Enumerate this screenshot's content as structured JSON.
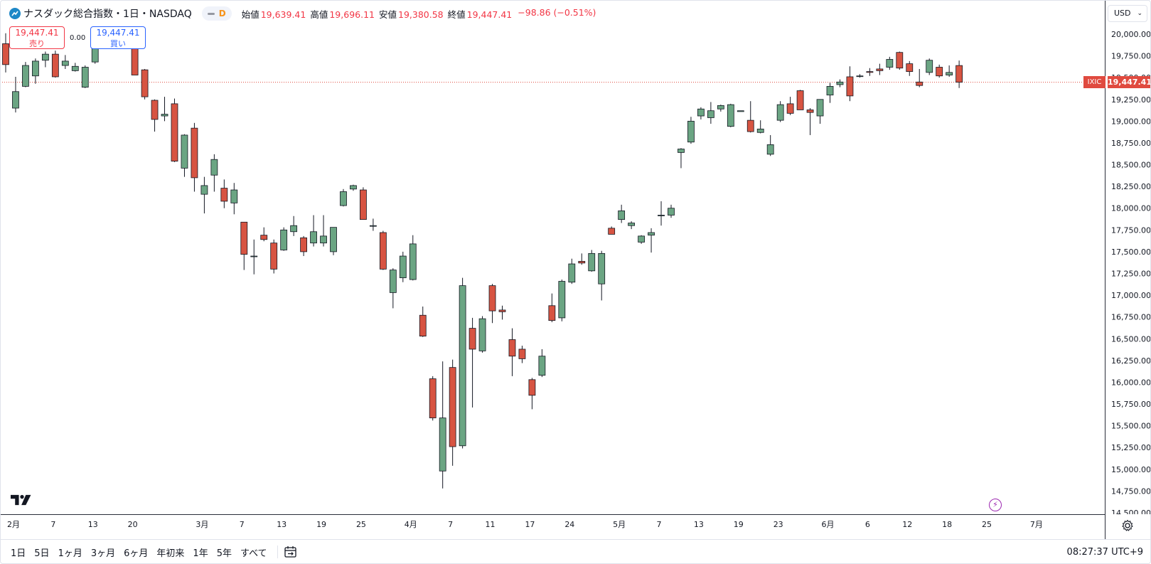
{
  "header": {
    "symbol_title": "ナスダック総合指数・1日・NASDAQ",
    "interval_badge": "D",
    "ohlc": [
      {
        "label": "始値",
        "value": "19,639.41"
      },
      {
        "label": "高値",
        "value": "19,696.11"
      },
      {
        "label": "安値",
        "value": "19,380.58"
      },
      {
        "label": "終値",
        "value": "19,447.41"
      },
      {
        "label": "",
        "value": "−98.86 (−0.51%)"
      }
    ]
  },
  "trade": {
    "sell_price": "19,447.41",
    "sell_label": "売り",
    "spread": "0.00",
    "buy_price": "19,447.41",
    "buy_label": "買い"
  },
  "currency_button": "USD",
  "last_price_tag": "19,447.41",
  "symbol_tag": "IXIC",
  "toolbar": {
    "ranges": [
      "1日",
      "5日",
      "1ヶ月",
      "3ヶ月",
      "6ヶ月",
      "年初来",
      "1年",
      "5年",
      "すべて"
    ]
  },
  "clock": "08:27:37 UTC+9",
  "colors": {
    "up": "#6ba583",
    "down": "#d75442",
    "tag": "#e04a3f",
    "accent": "#2962ff"
  },
  "icons": [
    "symbol-logo-icon",
    "tradingview-logo-icon",
    "flash-icon",
    "settings-gear-icon",
    "calendar-range-icon",
    "chevron-down-icon"
  ],
  "chart_data": {
    "type": "candlestick",
    "title": "",
    "xlabel": "",
    "ylabel": "",
    "ylim": [
      14500,
      20250
    ],
    "y_ticks": [
      14500,
      14750,
      15000,
      15250,
      15500,
      15750,
      16000,
      16250,
      16500,
      16750,
      17000,
      17250,
      17500,
      17750,
      18000,
      18250,
      18500,
      18750,
      19000,
      19250,
      19500,
      19750,
      20000
    ],
    "y_tick_labels": [
      "14,500.00",
      "14,750.00",
      "15,000.00",
      "15,250.00",
      "15,500.00",
      "15,750.00",
      "16,000.00",
      "16,250.00",
      "16,500.00",
      "16,750.00",
      "17,000.00",
      "17,250.00",
      "17,500.00",
      "17,750.00",
      "18,000.00",
      "18,250.00",
      "18,500.00",
      "18,750.00",
      "19,000.00",
      "19,250.00",
      "19,500.00",
      "19,750.00",
      "20,000.00"
    ],
    "x_tick_labels": [
      {
        "label": "2月",
        "bar": 0
      },
      {
        "label": "7",
        "bar": 4
      },
      {
        "label": "13",
        "bar": 8
      },
      {
        "label": "20",
        "bar": 12
      },
      {
        "label": "3月",
        "bar": 19
      },
      {
        "label": "7",
        "bar": 23
      },
      {
        "label": "13",
        "bar": 27
      },
      {
        "label": "19",
        "bar": 31
      },
      {
        "label": "25",
        "bar": 35
      },
      {
        "label": "4月",
        "bar": 40
      },
      {
        "label": "7",
        "bar": 44
      },
      {
        "label": "11",
        "bar": 48
      },
      {
        "label": "17",
        "bar": 52
      },
      {
        "label": "24",
        "bar": 56
      },
      {
        "label": "5月",
        "bar": 61
      },
      {
        "label": "7",
        "bar": 65
      },
      {
        "label": "13",
        "bar": 69
      },
      {
        "label": "19",
        "bar": 73
      },
      {
        "label": "23",
        "bar": 77
      },
      {
        "label": "6月",
        "bar": 82
      },
      {
        "label": "6",
        "bar": 86
      },
      {
        "label": "12",
        "bar": 90
      },
      {
        "label": "18",
        "bar": 94
      },
      {
        "label": "25",
        "bar": 98
      },
      {
        "label": "7月",
        "bar": 103
      }
    ],
    "last_close": 19447.41,
    "candles": [
      {
        "o": 19890,
        "h": 20010,
        "l": 19560,
        "c": 19650
      },
      {
        "o": 19150,
        "h": 19510,
        "l": 19100,
        "c": 19340
      },
      {
        "o": 19400,
        "h": 19680,
        "l": 19390,
        "c": 19640
      },
      {
        "o": 19520,
        "h": 19720,
        "l": 19430,
        "c": 19690
      },
      {
        "o": 19700,
        "h": 19800,
        "l": 19620,
        "c": 19770
      },
      {
        "o": 19770,
        "h": 19810,
        "l": 19500,
        "c": 19510
      },
      {
        "o": 19640,
        "h": 19760,
        "l": 19600,
        "c": 19690
      },
      {
        "o": 19580,
        "h": 19670,
        "l": 19570,
        "c": 19630
      },
      {
        "o": 19390,
        "h": 19640,
        "l": 19380,
        "c": 19620
      },
      {
        "o": 19680,
        "h": 19930,
        "l": 19660,
        "c": 19900
      },
      {
        "o": 19910,
        "h": 20010,
        "l": 19890,
        "c": 19970
      },
      {
        "o": 19980,
        "h": 20050,
        "l": 19940,
        "c": 20010
      },
      {
        "o": 19980,
        "h": 20060,
        "l": 19940,
        "c": 20020
      },
      {
        "o": 20000,
        "h": 20060,
        "l": 19530,
        "c": 19530
      },
      {
        "o": 19590,
        "h": 19600,
        "l": 19250,
        "c": 19280
      },
      {
        "o": 19240,
        "h": 19250,
        "l": 18880,
        "c": 19020
      },
      {
        "o": 19060,
        "h": 19280,
        "l": 19000,
        "c": 19080
      },
      {
        "o": 19200,
        "h": 19260,
        "l": 18530,
        "c": 18540
      },
      {
        "o": 18460,
        "h": 18850,
        "l": 18360,
        "c": 18840
      },
      {
        "o": 18920,
        "h": 18980,
        "l": 18190,
        "c": 18350
      },
      {
        "o": 18160,
        "h": 18360,
        "l": 17940,
        "c": 18260
      },
      {
        "o": 18380,
        "h": 18620,
        "l": 18190,
        "c": 18560
      },
      {
        "o": 18230,
        "h": 18330,
        "l": 18000,
        "c": 18080
      },
      {
        "o": 18060,
        "h": 18290,
        "l": 17930,
        "c": 18210
      },
      {
        "o": 17840,
        "h": 17840,
        "l": 17290,
        "c": 17470
      },
      {
        "o": 17450,
        "h": 17640,
        "l": 17240,
        "c": 17450
      },
      {
        "o": 17690,
        "h": 17780,
        "l": 17620,
        "c": 17640
      },
      {
        "o": 17600,
        "h": 17640,
        "l": 17250,
        "c": 17300
      },
      {
        "o": 17520,
        "h": 17780,
        "l": 17510,
        "c": 17750
      },
      {
        "o": 17730,
        "h": 17910,
        "l": 17680,
        "c": 17800
      },
      {
        "o": 17660,
        "h": 17680,
        "l": 17450,
        "c": 17500
      },
      {
        "o": 17600,
        "h": 17920,
        "l": 17560,
        "c": 17730
      },
      {
        "o": 17600,
        "h": 17920,
        "l": 17560,
        "c": 17680
      },
      {
        "o": 17500,
        "h": 17780,
        "l": 17460,
        "c": 17780
      },
      {
        "o": 18030,
        "h": 18220,
        "l": 18020,
        "c": 18190
      },
      {
        "o": 18220,
        "h": 18270,
        "l": 18200,
        "c": 18260
      },
      {
        "o": 18210,
        "h": 18240,
        "l": 17870,
        "c": 17870
      },
      {
        "o": 17800,
        "h": 17880,
        "l": 17740,
        "c": 17800
      },
      {
        "o": 17720,
        "h": 17740,
        "l": 17290,
        "c": 17300
      },
      {
        "o": 17030,
        "h": 17310,
        "l": 16850,
        "c": 17290
      },
      {
        "o": 17200,
        "h": 17500,
        "l": 17150,
        "c": 17450
      },
      {
        "o": 17180,
        "h": 17690,
        "l": 17170,
        "c": 17590
      },
      {
        "o": 16770,
        "h": 16870,
        "l": 16520,
        "c": 16530
      },
      {
        "o": 16040,
        "h": 16070,
        "l": 15560,
        "c": 15590
      },
      {
        "o": 14980,
        "h": 16240,
        "l": 14780,
        "c": 15590
      },
      {
        "o": 16170,
        "h": 16260,
        "l": 15040,
        "c": 15260
      },
      {
        "o": 15270,
        "h": 17200,
        "l": 15240,
        "c": 17110
      },
      {
        "o": 16620,
        "h": 16740,
        "l": 15710,
        "c": 16380
      },
      {
        "o": 16360,
        "h": 16760,
        "l": 16340,
        "c": 16730
      },
      {
        "o": 17110,
        "h": 17130,
        "l": 16680,
        "c": 16820
      },
      {
        "o": 16830,
        "h": 16880,
        "l": 16720,
        "c": 16810
      },
      {
        "o": 16490,
        "h": 16620,
        "l": 16070,
        "c": 16300
      },
      {
        "o": 16380,
        "h": 16420,
        "l": 16220,
        "c": 16270
      },
      {
        "o": 16030,
        "h": 16050,
        "l": 15690,
        "c": 15850
      },
      {
        "o": 16080,
        "h": 16380,
        "l": 16060,
        "c": 16300
      },
      {
        "o": 16880,
        "h": 17020,
        "l": 16690,
        "c": 16710
      },
      {
        "o": 16740,
        "h": 17180,
        "l": 16700,
        "c": 17160
      },
      {
        "o": 17150,
        "h": 17420,
        "l": 17130,
        "c": 17360
      },
      {
        "o": 17390,
        "h": 17480,
        "l": 17350,
        "c": 17370
      },
      {
        "o": 17280,
        "h": 17520,
        "l": 17270,
        "c": 17480
      },
      {
        "o": 17130,
        "h": 17510,
        "l": 16940,
        "c": 17480
      },
      {
        "o": 17770,
        "h": 17790,
        "l": 17700,
        "c": 17700
      },
      {
        "o": 17870,
        "h": 18040,
        "l": 17830,
        "c": 17970
      },
      {
        "o": 17800,
        "h": 17850,
        "l": 17760,
        "c": 17830
      },
      {
        "o": 17610,
        "h": 17690,
        "l": 17590,
        "c": 17680
      },
      {
        "o": 17690,
        "h": 17770,
        "l": 17490,
        "c": 17720
      },
      {
        "o": 17920,
        "h": 18080,
        "l": 17800,
        "c": 17920
      },
      {
        "o": 17920,
        "h": 18040,
        "l": 17890,
        "c": 18000
      },
      {
        "o": 18640,
        "h": 18690,
        "l": 18460,
        "c": 18680
      },
      {
        "o": 18760,
        "h": 19050,
        "l": 18740,
        "c": 19000
      },
      {
        "o": 19060,
        "h": 19160,
        "l": 19020,
        "c": 19140
      },
      {
        "o": 19040,
        "h": 19220,
        "l": 18970,
        "c": 19120
      },
      {
        "o": 19140,
        "h": 19190,
        "l": 19110,
        "c": 19180
      },
      {
        "o": 18940,
        "h": 19200,
        "l": 18930,
        "c": 19190
      },
      {
        "o": 19110,
        "h": 19120,
        "l": 19110,
        "c": 19120
      },
      {
        "o": 19010,
        "h": 19230,
        "l": 18870,
        "c": 18880
      },
      {
        "o": 18870,
        "h": 19010,
        "l": 18860,
        "c": 18910
      },
      {
        "o": 18620,
        "h": 18840,
        "l": 18600,
        "c": 18730
      },
      {
        "o": 19010,
        "h": 19230,
        "l": 18990,
        "c": 19190
      },
      {
        "o": 19200,
        "h": 19280,
        "l": 19070,
        "c": 19090
      },
      {
        "o": 19350,
        "h": 19360,
        "l": 19130,
        "c": 19130
      },
      {
        "o": 19130,
        "h": 19150,
        "l": 18840,
        "c": 19100
      },
      {
        "o": 19060,
        "h": 19250,
        "l": 18970,
        "c": 19250
      },
      {
        "o": 19300,
        "h": 19440,
        "l": 19210,
        "c": 19400
      },
      {
        "o": 19420,
        "h": 19480,
        "l": 19390,
        "c": 19450
      },
      {
        "o": 19510,
        "h": 19630,
        "l": 19230,
        "c": 19290
      },
      {
        "o": 19520,
        "h": 19540,
        "l": 19500,
        "c": 19520
      },
      {
        "o": 19570,
        "h": 19610,
        "l": 19520,
        "c": 19560
      },
      {
        "o": 19600,
        "h": 19660,
        "l": 19530,
        "c": 19580
      },
      {
        "o": 19620,
        "h": 19740,
        "l": 19590,
        "c": 19710
      },
      {
        "o": 19790,
        "h": 19800,
        "l": 19590,
        "c": 19610
      },
      {
        "o": 19660,
        "h": 19690,
        "l": 19520,
        "c": 19570
      },
      {
        "o": 19450,
        "h": 19600,
        "l": 19390,
        "c": 19410
      },
      {
        "o": 19560,
        "h": 19720,
        "l": 19530,
        "c": 19700
      },
      {
        "o": 19620,
        "h": 19650,
        "l": 19500,
        "c": 19520
      },
      {
        "o": 19530,
        "h": 19640,
        "l": 19510,
        "c": 19560
      },
      {
        "o": 19639.41,
        "h": 19696.11,
        "l": 19380.58,
        "c": 19447.41
      }
    ]
  }
}
